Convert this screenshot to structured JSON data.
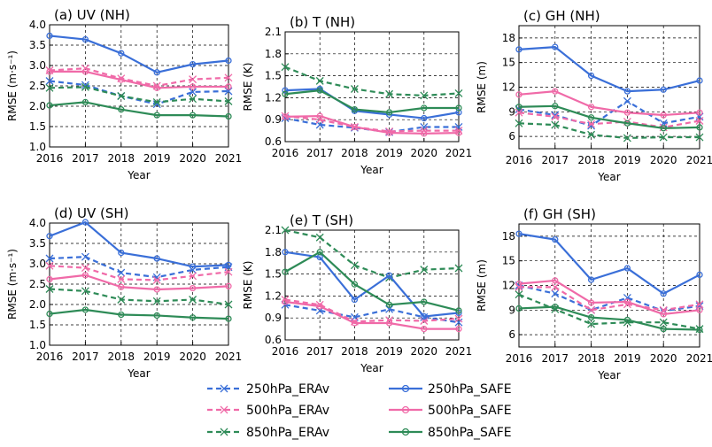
{
  "chart_data": [
    {
      "type": "line",
      "title": "(a) UV (NH)",
      "xlabel": "Year",
      "ylabel": "RMSE (m·s⁻¹)",
      "x": [
        "2016",
        "2017",
        "2018",
        "2019",
        "2020",
        "2021"
      ],
      "ylim": [
        1.0,
        4.0
      ],
      "yticks": [
        "1.0",
        "1.5",
        "2.0",
        "2.5",
        "3.0",
        "3.5",
        "4.0"
      ],
      "grid": true,
      "series": [
        {
          "name": "250hPa_ERAv",
          "values": [
            2.62,
            2.52,
            2.25,
            2.05,
            2.35,
            2.37
          ]
        },
        {
          "name": "500hPa_ERAv",
          "values": [
            2.88,
            2.93,
            2.68,
            2.5,
            2.66,
            2.7
          ]
        },
        {
          "name": "850hPa_ERAv",
          "values": [
            2.45,
            2.47,
            2.25,
            2.1,
            2.18,
            2.12
          ]
        },
        {
          "name": "250hPa_SAFE",
          "values": [
            3.73,
            3.64,
            3.3,
            2.83,
            3.03,
            3.12
          ]
        },
        {
          "name": "500hPa_SAFE",
          "values": [
            2.85,
            2.85,
            2.65,
            2.45,
            2.48,
            2.48
          ]
        },
        {
          "name": "850hPa_SAFE",
          "values": [
            2.02,
            2.1,
            1.92,
            1.78,
            1.78,
            1.75
          ]
        }
      ]
    },
    {
      "type": "line",
      "title": "(b) T (NH)",
      "xlabel": "Year",
      "ylabel": "RMSE (K)",
      "x": [
        "2016",
        "2017",
        "2018",
        "2019",
        "2020",
        "2021"
      ],
      "ylim": [
        0.6,
        2.1
      ],
      "yticks": [
        "0.6",
        "0.9",
        "1.2",
        "1.5",
        "1.8",
        "2.1"
      ],
      "grid": true,
      "series": [
        {
          "name": "250hPa_ERAv",
          "values": [
            0.92,
            0.83,
            0.79,
            0.73,
            0.8,
            0.8
          ]
        },
        {
          "name": "500hPa_ERAv",
          "values": [
            0.95,
            0.9,
            0.8,
            0.74,
            0.75,
            0.75
          ]
        },
        {
          "name": "850hPa_ERAv",
          "values": [
            1.62,
            1.43,
            1.32,
            1.25,
            1.23,
            1.26
          ]
        },
        {
          "name": "250hPa_SAFE",
          "values": [
            1.3,
            1.32,
            1.02,
            0.97,
            0.92,
            1.0
          ]
        },
        {
          "name": "500hPa_SAFE",
          "values": [
            0.94,
            0.95,
            0.8,
            0.72,
            0.71,
            0.72
          ]
        },
        {
          "name": "850hPa_SAFE",
          "values": [
            1.25,
            1.3,
            1.04,
            1.0,
            1.06,
            1.06
          ]
        }
      ]
    },
    {
      "type": "line",
      "title": "(c) GH (NH)",
      "xlabel": "Year",
      "ylabel": "RMSE (m)",
      "x": [
        "2016",
        "2017",
        "2018",
        "2019",
        "2020",
        "2021"
      ],
      "ylim": [
        4.5,
        19.5
      ],
      "yticks": [
        "6",
        "9",
        "12",
        "15",
        "18"
      ],
      "grid": true,
      "series": [
        {
          "name": "250hPa_ERAv",
          "values": [
            9.3,
            8.6,
            7.3,
            10.3,
            7.6,
            8.4
          ]
        },
        {
          "name": "500hPa_ERAv",
          "values": [
            8.9,
            8.4,
            7.5,
            7.8,
            7.1,
            7.9
          ]
        },
        {
          "name": "850hPa_ERAv",
          "values": [
            7.6,
            7.4,
            6.2,
            5.8,
            5.9,
            5.9
          ]
        },
        {
          "name": "250hPa_SAFE",
          "values": [
            16.6,
            16.9,
            13.4,
            11.5,
            11.7,
            12.8
          ]
        },
        {
          "name": "500hPa_SAFE",
          "values": [
            11.1,
            11.5,
            9.6,
            8.9,
            8.6,
            8.9
          ]
        },
        {
          "name": "850hPa_SAFE",
          "values": [
            9.6,
            9.7,
            8.3,
            7.6,
            7.0,
            7.1
          ]
        }
      ]
    },
    {
      "type": "line",
      "title": "(d) UV (SH)",
      "xlabel": "Year",
      "ylabel": "RMSE (m·s⁻¹)",
      "x": [
        "2016",
        "2017",
        "2018",
        "2019",
        "2020",
        "2021"
      ],
      "ylim": [
        1.0,
        4.0
      ],
      "yticks": [
        "1.0",
        "1.5",
        "2.0",
        "2.5",
        "3.0",
        "3.5",
        "4.0"
      ],
      "grid": true,
      "series": [
        {
          "name": "250hPa_ERAv",
          "values": [
            3.13,
            3.17,
            2.78,
            2.67,
            2.85,
            2.92
          ]
        },
        {
          "name": "500hPa_ERAv",
          "values": [
            2.95,
            2.9,
            2.62,
            2.6,
            2.7,
            2.8
          ]
        },
        {
          "name": "850hPa_ERAv",
          "values": [
            2.38,
            2.33,
            2.12,
            2.08,
            2.12,
            2.0
          ]
        },
        {
          "name": "250hPa_SAFE",
          "values": [
            3.68,
            4.02,
            3.27,
            3.13,
            2.93,
            2.97
          ]
        },
        {
          "name": "500hPa_SAFE",
          "values": [
            2.62,
            2.72,
            2.43,
            2.37,
            2.4,
            2.45
          ]
        },
        {
          "name": "850hPa_SAFE",
          "values": [
            1.77,
            1.87,
            1.75,
            1.73,
            1.68,
            1.65
          ]
        }
      ]
    },
    {
      "type": "line",
      "title": "(e) T (SH)",
      "xlabel": "Year",
      "ylabel": "RMSE (K)",
      "x": [
        "2016",
        "2017",
        "2018",
        "2019",
        "2020",
        "2021"
      ],
      "ylim": [
        0.6,
        2.1
      ],
      "yticks": [
        "0.6",
        "0.9",
        "1.2",
        "1.5",
        "1.8",
        "2.1"
      ],
      "grid": true,
      "series": [
        {
          "name": "250hPa_ERAv",
          "values": [
            1.08,
            1.0,
            0.91,
            1.02,
            0.91,
            0.84
          ]
        },
        {
          "name": "500hPa_ERAv",
          "values": [
            1.15,
            1.08,
            0.85,
            0.87,
            0.86,
            0.89
          ]
        },
        {
          "name": "850hPa_ERAv",
          "values": [
            2.1,
            2.0,
            1.62,
            1.45,
            1.56,
            1.58
          ]
        },
        {
          "name": "250hPa_SAFE",
          "values": [
            1.8,
            1.73,
            1.15,
            1.48,
            0.92,
            0.97
          ]
        },
        {
          "name": "500hPa_SAFE",
          "values": [
            1.12,
            1.06,
            0.83,
            0.83,
            0.75,
            0.75
          ]
        },
        {
          "name": "850hPa_SAFE",
          "values": [
            1.53,
            1.8,
            1.36,
            1.08,
            1.12,
            1.0
          ]
        }
      ]
    },
    {
      "type": "line",
      "title": "(f) GH (SH)",
      "xlabel": "Year",
      "ylabel": "RMSE (m)",
      "x": [
        "2016",
        "2017",
        "2018",
        "2019",
        "2020",
        "2021"
      ],
      "ylim": [
        4.5,
        19.5
      ],
      "yticks": [
        "6",
        "9",
        "12",
        "15",
        "18"
      ],
      "grid": true,
      "series": [
        {
          "name": "250hPa_ERAv",
          "values": [
            12.0,
            11.0,
            9.0,
            10.5,
            8.9,
            9.5
          ]
        },
        {
          "name": "500hPa_ERAv",
          "values": [
            11.8,
            11.8,
            9.0,
            9.7,
            9.0,
            9.7
          ]
        },
        {
          "name": "850hPa_ERAv",
          "values": [
            10.9,
            9.1,
            7.3,
            7.5,
            7.5,
            6.7
          ]
        },
        {
          "name": "250hPa_SAFE",
          "values": [
            18.3,
            17.6,
            12.7,
            14.1,
            11.0,
            13.3
          ]
        },
        {
          "name": "500hPa_SAFE",
          "values": [
            12.2,
            12.6,
            9.9,
            10.0,
            8.5,
            9.0
          ]
        },
        {
          "name": "850hPa_SAFE",
          "values": [
            9.2,
            9.4,
            8.1,
            7.8,
            6.7,
            6.6
          ]
        }
      ]
    }
  ],
  "legend": {
    "placement": "bottom",
    "entries": [
      {
        "name": "250hPa_ERAv",
        "color": "#3a6fd8",
        "dash": true,
        "marker": "cross"
      },
      {
        "name": "250hPa_SAFE",
        "color": "#3a6fd8",
        "dash": false,
        "marker": "circle"
      },
      {
        "name": "500hPa_ERAv",
        "color": "#f06aa8",
        "dash": true,
        "marker": "cross"
      },
      {
        "name": "500hPa_SAFE",
        "color": "#f06aa8",
        "dash": false,
        "marker": "circle"
      },
      {
        "name": "850hPa_ERAv",
        "color": "#2e8b57",
        "dash": true,
        "marker": "cross"
      },
      {
        "name": "850hPa_SAFE",
        "color": "#2e8b57",
        "dash": false,
        "marker": "circle"
      }
    ]
  },
  "colors": {
    "250hPa": "#3a6fd8",
    "500hPa": "#f06aa8",
    "850hPa": "#2e8b57"
  }
}
